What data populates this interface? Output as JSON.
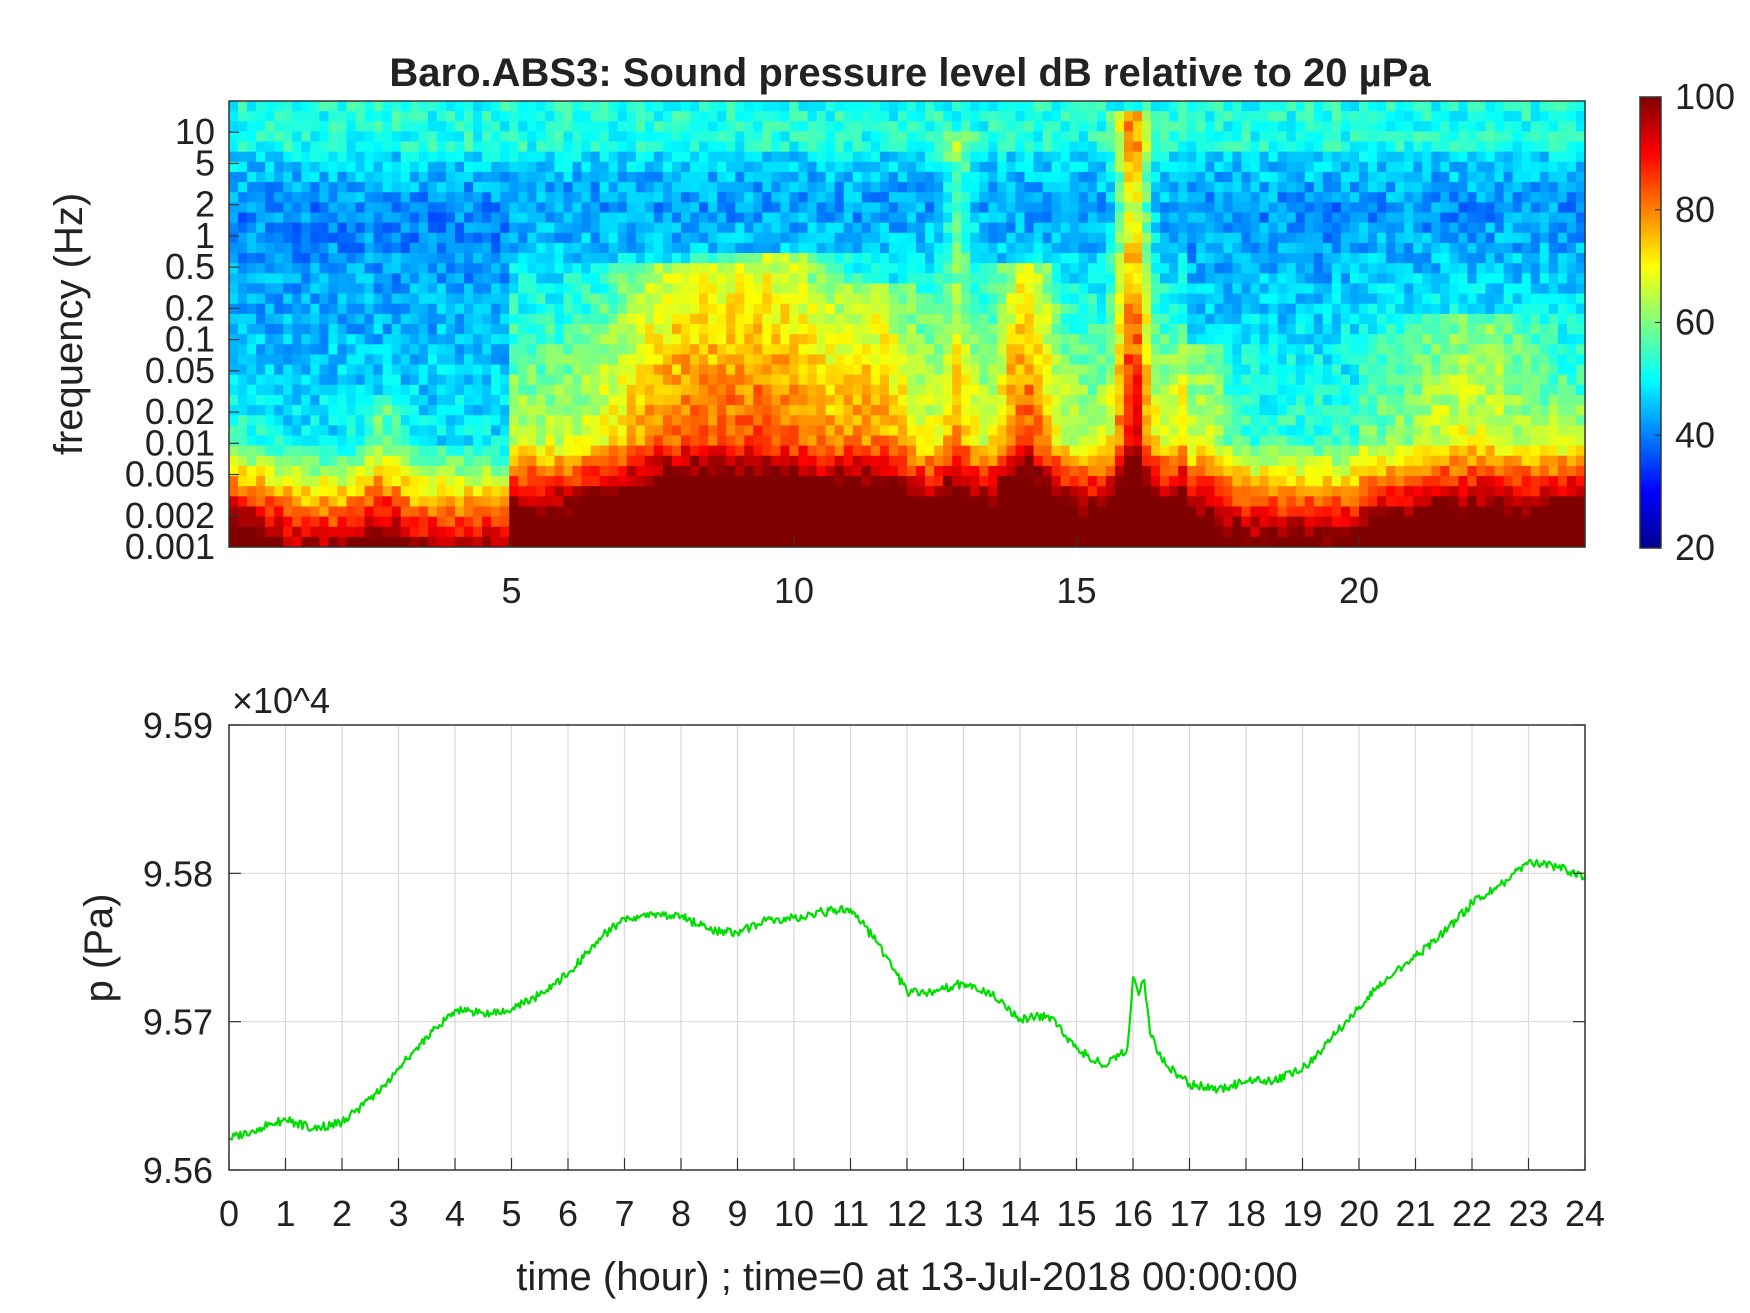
{
  "figure_title": "Baro.ABS3: Sound pressure level dB relative to 20 µPa",
  "chart_data": [
    {
      "type": "heatmap",
      "title": "Baro.ABS3: Sound pressure level dB relative to 20 µPa",
      "ylabel": "frequency (Hz)",
      "yscale": "log",
      "xlim": [
        0,
        24
      ],
      "ylim": [
        0.001,
        20
      ],
      "x_ticks": [
        5,
        10,
        15,
        20
      ],
      "y_ticks": [
        0.001,
        0.002,
        0.005,
        0.01,
        0.02,
        0.05,
        0.1,
        0.2,
        0.5,
        1,
        2,
        5,
        10
      ],
      "y_tick_labels": [
        "0.001",
        "0.002",
        "0.005",
        "0.01",
        "0.02",
        "0.05",
        "0.1",
        "0.2",
        "0.5",
        "1",
        "2",
        "5",
        "10"
      ],
      "colormap": "jet",
      "colorbar": {
        "range": [
          20,
          100
        ],
        "ticks": [
          20,
          40,
          60,
          80,
          100
        ]
      },
      "event_hours": [
        {
          "hour": 16.0,
          "spread_hours": 0.3,
          "top_log10_hz": 1.2,
          "db": 28
        },
        {
          "hour": 14.1,
          "spread_hours": 0.5,
          "top_log10_hz": -0.3,
          "db": 20
        },
        {
          "hour": 12.9,
          "spread_hours": 0.3,
          "top_log10_hz": 1.0,
          "db": 12
        },
        {
          "hour": 9.6,
          "spread_hours": 1.3,
          "top_log10_hz": -0.2,
          "db": 18
        },
        {
          "hour": 7.8,
          "spread_hours": 1.1,
          "top_log10_hz": -0.3,
          "db": 15
        },
        {
          "hour": 11.5,
          "spread_hours": 0.8,
          "top_log10_hz": -0.5,
          "db": 12
        },
        {
          "hour": 17.2,
          "spread_hours": 0.5,
          "top_log10_hz": -1.0,
          "db": 12
        },
        {
          "hour": 22.0,
          "spread_hours": 1.2,
          "top_log10_hz": -0.8,
          "db": 10
        },
        {
          "hour": 2.7,
          "spread_hours": 0.4,
          "top_log10_hz": -1.5,
          "db": 10
        }
      ]
    },
    {
      "type": "line",
      "xlabel": "time (hour) ; time=0 at 13-Jul-2018 00:00:00",
      "ylabel": "p (Pa)",
      "multiplier": "×10^4",
      "xlim": [
        0,
        24
      ],
      "ylim": [
        9.56,
        9.59
      ],
      "x_ticks": [
        0,
        1,
        2,
        3,
        4,
        5,
        6,
        7,
        8,
        9,
        10,
        11,
        12,
        13,
        14,
        15,
        16,
        17,
        18,
        19,
        20,
        21,
        22,
        23,
        24
      ],
      "y_ticks": [
        9.56,
        9.57,
        9.58,
        9.59
      ],
      "y_tick_labels": [
        "9.56",
        "9.57",
        "9.58",
        "9.59"
      ],
      "grid": true,
      "series": [
        {
          "color": "#00dd00",
          "x": [
            0,
            0.5,
            1,
            1.5,
            2,
            2.5,
            3,
            3.5,
            4,
            4.5,
            5,
            5.5,
            6,
            6.5,
            7,
            7.5,
            8,
            8.5,
            9,
            9.5,
            10,
            10.5,
            11,
            11.5,
            12,
            12.5,
            13,
            13.5,
            14,
            14.5,
            15,
            15.5,
            15.9,
            16.0,
            16.1,
            16.2,
            16.3,
            16.5,
            16.8,
            17,
            17.5,
            18,
            18.5,
            19,
            19.5,
            20,
            20.5,
            21,
            21.5,
            22,
            22.5,
            23,
            23.5,
            24
          ],
          "y": [
            9.5621,
            9.5628,
            9.5634,
            9.5628,
            9.5632,
            9.5648,
            9.5668,
            9.569,
            9.5708,
            9.5706,
            9.5708,
            9.5718,
            9.5732,
            9.5754,
            9.577,
            9.5772,
            9.5771,
            9.5762,
            9.576,
            9.5768,
            9.577,
            9.5774,
            9.5776,
            9.5752,
            9.572,
            9.572,
            9.5726,
            9.5718,
            9.5702,
            9.5704,
            9.5682,
            9.567,
            9.5682,
            9.573,
            9.5718,
            9.5728,
            9.5692,
            9.5675,
            9.5664,
            9.5658,
            9.5654,
            9.566,
            9.566,
            9.5668,
            9.5688,
            9.571,
            9.573,
            9.5744,
            9.576,
            9.578,
            9.5792,
            9.5808,
            9.5804,
            9.5798
          ]
        }
      ]
    }
  ]
}
